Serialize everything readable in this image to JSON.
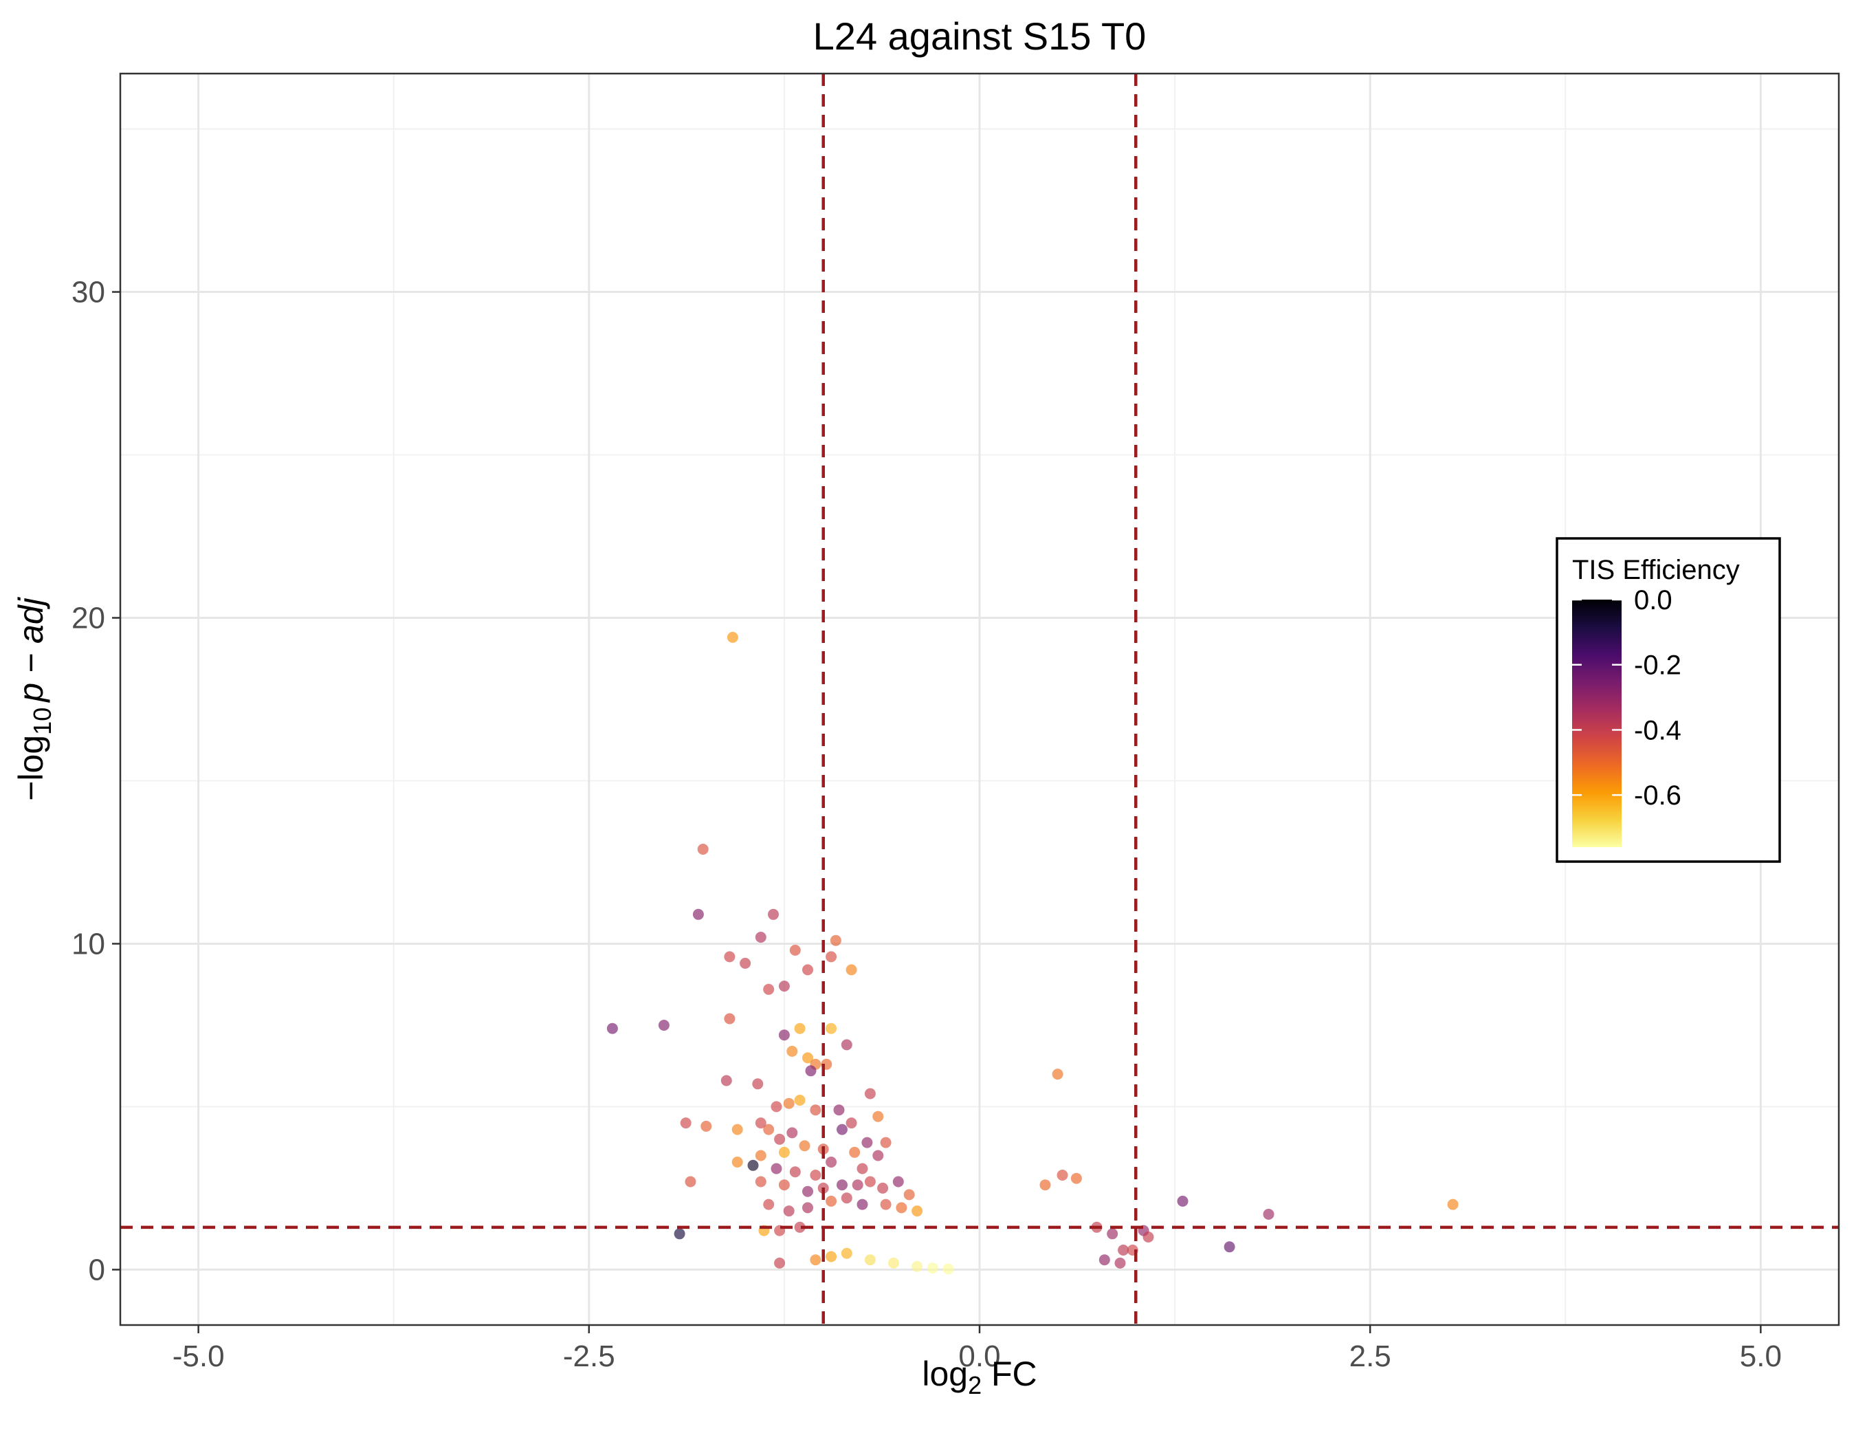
{
  "chart_data": {
    "type": "scatter",
    "title": "L24 against S15 T0",
    "xlabel": {
      "base": "log",
      "sub": "2",
      "rest": " FC"
    },
    "ylabel": {
      "prefix": "−log",
      "sub": "10",
      "italic": "p − adj"
    },
    "xlim": [
      -5.5,
      5.5
    ],
    "ylim": [
      -1.7,
      36.7
    ],
    "x_ticks": [
      -5.0,
      -2.5,
      0.0,
      2.5,
      5.0
    ],
    "x_tick_labels": [
      "-5.0",
      "-2.5",
      "0.0",
      "2.5",
      "5.0"
    ],
    "y_ticks": [
      0,
      10,
      20,
      30
    ],
    "y_tick_labels": [
      "0",
      "10",
      "20",
      "30"
    ],
    "grid": true,
    "threshold_lines": {
      "vertical": [
        -1.0,
        1.0
      ],
      "horizontal": [
        1.3
      ],
      "color": "#9b1b1e",
      "style": "dashed"
    },
    "legend": {
      "title": "TIS Efficiency",
      "position": "right",
      "type": "colorbar",
      "range": [
        -0.76,
        0.0
      ],
      "breaks": [
        0.0,
        -0.2,
        -0.4,
        -0.6
      ],
      "break_labels": [
        "0.0",
        "-0.2",
        "-0.4",
        "-0.6"
      ],
      "palette": [
        "#000004",
        "#1b0c41",
        "#4a0c6b",
        "#781c6d",
        "#a52c60",
        "#cf4446",
        "#ed6925",
        "#fb9b06",
        "#f7d13d",
        "#fcffa4"
      ]
    },
    "points": [
      [
        -1.58,
        19.4,
        -0.58
      ],
      [
        -1.77,
        12.9,
        -0.45
      ],
      [
        -1.8,
        10.9,
        -0.28
      ],
      [
        -1.32,
        10.9,
        -0.38
      ],
      [
        -1.4,
        10.2,
        -0.36
      ],
      [
        -1.6,
        9.6,
        -0.42
      ],
      [
        -1.5,
        9.4,
        -0.4
      ],
      [
        -1.18,
        9.8,
        -0.45
      ],
      [
        -0.92,
        10.1,
        -0.48
      ],
      [
        -0.95,
        9.6,
        -0.44
      ],
      [
        -1.35,
        8.6,
        -0.42
      ],
      [
        -1.25,
        8.7,
        -0.37
      ],
      [
        -0.82,
        9.2,
        -0.55
      ],
      [
        -1.1,
        9.2,
        -0.42
      ],
      [
        -2.35,
        7.4,
        -0.25
      ],
      [
        -2.02,
        7.5,
        -0.27
      ],
      [
        -1.6,
        7.7,
        -0.45
      ],
      [
        -1.25,
        7.2,
        -0.28
      ],
      [
        -1.15,
        7.4,
        -0.6
      ],
      [
        -0.95,
        7.4,
        -0.62
      ],
      [
        -1.2,
        6.7,
        -0.55
      ],
      [
        -1.1,
        6.5,
        -0.58
      ],
      [
        -1.05,
        6.3,
        -0.52
      ],
      [
        -0.98,
        6.3,
        -0.5
      ],
      [
        -1.08,
        6.1,
        -0.26
      ],
      [
        -0.85,
        6.9,
        -0.35
      ],
      [
        -1.62,
        5.8,
        -0.38
      ],
      [
        -1.42,
        5.7,
        -0.4
      ],
      [
        -0.7,
        5.4,
        -0.4
      ],
      [
        -1.3,
        5.0,
        -0.42
      ],
      [
        -1.22,
        5.1,
        -0.52
      ],
      [
        -1.15,
        5.2,
        -0.6
      ],
      [
        -1.05,
        4.9,
        -0.45
      ],
      [
        -0.9,
        4.9,
        -0.3
      ],
      [
        -0.82,
        4.5,
        -0.4
      ],
      [
        -0.65,
        4.7,
        -0.52
      ],
      [
        -1.88,
        4.5,
        -0.42
      ],
      [
        -1.75,
        4.4,
        -0.48
      ],
      [
        -1.55,
        4.3,
        -0.55
      ],
      [
        -1.4,
        4.5,
        -0.42
      ],
      [
        -1.35,
        4.3,
        -0.48
      ],
      [
        -1.28,
        4.0,
        -0.4
      ],
      [
        -1.2,
        4.2,
        -0.36
      ],
      [
        -1.12,
        3.8,
        -0.52
      ],
      [
        -1.0,
        3.7,
        -0.45
      ],
      [
        -0.88,
        4.3,
        -0.25
      ],
      [
        -1.25,
        3.6,
        -0.6
      ],
      [
        -1.4,
        3.5,
        -0.52
      ],
      [
        -1.55,
        3.3,
        -0.55
      ],
      [
        -1.45,
        3.2,
        -0.05
      ],
      [
        -1.3,
        3.1,
        -0.3
      ],
      [
        -1.18,
        3.0,
        -0.4
      ],
      [
        -1.05,
        2.9,
        -0.42
      ],
      [
        -0.95,
        3.3,
        -0.35
      ],
      [
        -0.8,
        3.6,
        -0.5
      ],
      [
        -0.72,
        3.9,
        -0.3
      ],
      [
        -0.6,
        3.9,
        -0.45
      ],
      [
        -0.65,
        3.5,
        -0.35
      ],
      [
        -0.75,
        3.1,
        -0.4
      ],
      [
        -1.85,
        2.7,
        -0.45
      ],
      [
        -1.4,
        2.7,
        -0.45
      ],
      [
        -1.25,
        2.6,
        -0.45
      ],
      [
        -1.1,
        2.4,
        -0.3
      ],
      [
        -1.0,
        2.5,
        -0.4
      ],
      [
        -0.88,
        2.6,
        -0.28
      ],
      [
        -0.78,
        2.6,
        -0.35
      ],
      [
        -0.7,
        2.7,
        -0.42
      ],
      [
        -0.62,
        2.5,
        -0.4
      ],
      [
        -0.52,
        2.7,
        -0.3
      ],
      [
        -0.45,
        2.3,
        -0.48
      ],
      [
        -1.35,
        2.0,
        -0.42
      ],
      [
        -1.22,
        1.8,
        -0.38
      ],
      [
        -1.1,
        1.9,
        -0.35
      ],
      [
        -0.95,
        2.1,
        -0.48
      ],
      [
        -0.85,
        2.2,
        -0.4
      ],
      [
        -0.75,
        2.0,
        -0.28
      ],
      [
        -0.6,
        2.0,
        -0.45
      ],
      [
        -0.5,
        1.9,
        -0.5
      ],
      [
        -0.4,
        1.8,
        -0.58
      ],
      [
        -1.38,
        1.2,
        -0.6
      ],
      [
        -1.28,
        1.2,
        -0.42
      ],
      [
        -1.15,
        1.3,
        -0.4
      ],
      [
        -1.92,
        1.1,
        -0.08
      ],
      [
        -1.28,
        0.2,
        -0.4
      ],
      [
        1.05,
        1.2,
        -0.3
      ],
      [
        1.08,
        1.0,
        -0.4
      ],
      [
        1.3,
        2.1,
        -0.25
      ],
      [
        1.6,
        0.7,
        -0.22
      ],
      [
        1.85,
        1.7,
        -0.32
      ],
      [
        3.03,
        2.0,
        -0.55
      ],
      [
        0.5,
        6.0,
        -0.52
      ],
      [
        0.53,
        2.9,
        -0.45
      ],
      [
        0.62,
        2.8,
        -0.5
      ],
      [
        0.42,
        2.6,
        -0.5
      ],
      [
        0.75,
        1.3,
        -0.4
      ],
      [
        0.85,
        1.1,
        -0.32
      ],
      [
        0.92,
        0.6,
        -0.38
      ],
      [
        0.98,
        0.6,
        -0.42
      ],
      [
        0.8,
        0.3,
        -0.3
      ],
      [
        0.9,
        0.2,
        -0.35
      ],
      [
        -1.05,
        0.3,
        -0.55
      ],
      [
        -0.95,
        0.4,
        -0.6
      ],
      [
        -0.85,
        0.5,
        -0.62
      ],
      [
        -0.7,
        0.3,
        -0.7
      ],
      [
        -0.55,
        0.2,
        -0.72
      ],
      [
        -0.4,
        0.1,
        -0.74
      ],
      [
        -0.3,
        0.05,
        -0.75
      ],
      [
        -0.2,
        0.02,
        -0.75
      ]
    ]
  }
}
